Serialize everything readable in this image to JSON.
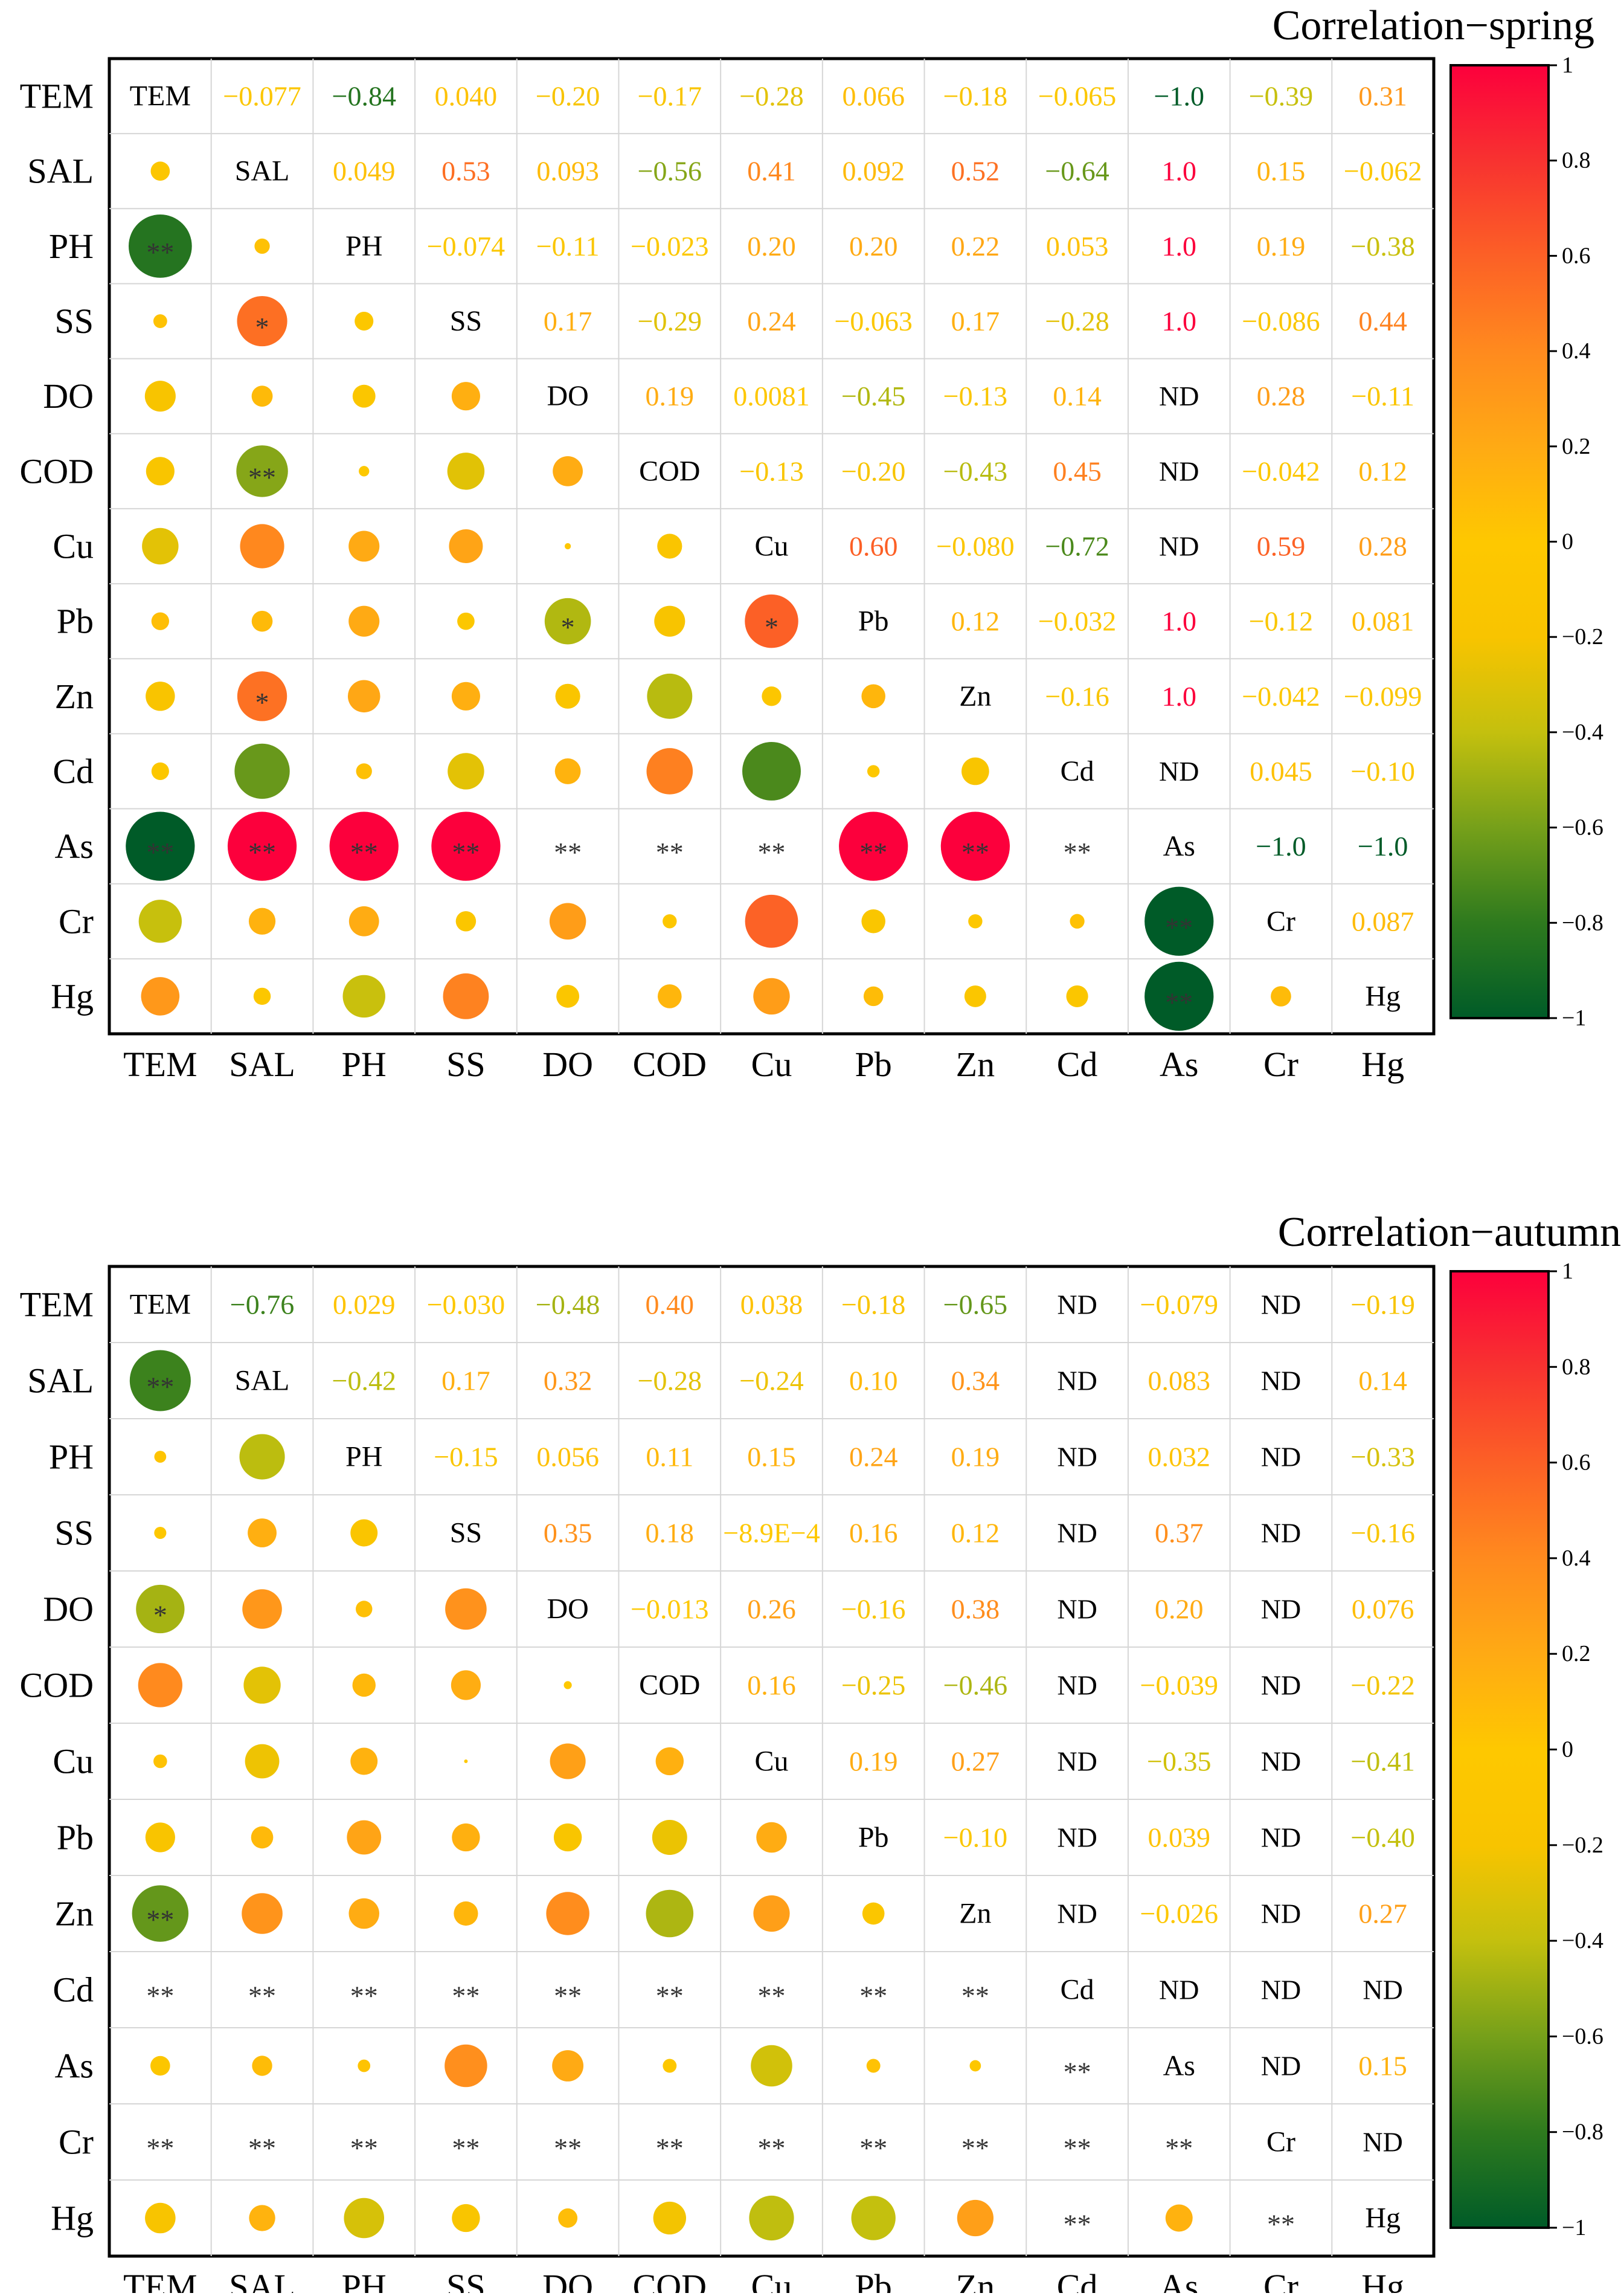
{
  "chart_data": [
    {
      "type": "heatmap",
      "subtype": "correlation-matrix",
      "title": "Correlation−spring",
      "variables": [
        "TEM",
        "SAL",
        "PH",
        "SS",
        "DO",
        "COD",
        "Cu",
        "Pb",
        "Zn",
        "Cd",
        "As",
        "Cr",
        "Hg"
      ],
      "upper_labels": [
        [
          "TEM",
          "−0.077",
          "−0.84",
          "0.040",
          "−0.20",
          "−0.17",
          "−0.28",
          "0.066",
          "−0.18",
          "−0.065",
          "−1.0",
          "−0.39",
          "0.31"
        ],
        [
          "",
          "SAL",
          "0.049",
          "0.53",
          "0.093",
          "−0.56",
          "0.41",
          "0.092",
          "0.52",
          "−0.64",
          "1.0",
          "0.15",
          "−0.062"
        ],
        [
          "",
          "",
          "PH",
          "−0.074",
          "−0.11",
          "−0.023",
          "0.20",
          "0.20",
          "0.22",
          "0.053",
          "1.0",
          "0.19",
          "−0.38"
        ],
        [
          "",
          "",
          "",
          "SS",
          "0.17",
          "−0.29",
          "0.24",
          "−0.063",
          "0.17",
          "−0.28",
          "1.0",
          "−0.086",
          "0.44"
        ],
        [
          "",
          "",
          "",
          "",
          "DO",
          "0.19",
          "0.0081",
          "−0.45",
          "−0.13",
          "0.14",
          "ND",
          "0.28",
          "−0.11"
        ],
        [
          "",
          "",
          "",
          "",
          "",
          "COD",
          "−0.13",
          "−0.20",
          "−0.43",
          "0.45",
          "ND",
          "−0.042",
          "0.12"
        ],
        [
          "",
          "",
          "",
          "",
          "",
          "",
          "Cu",
          "0.60",
          "−0.080",
          "−0.72",
          "ND",
          "0.59",
          "0.28"
        ],
        [
          "",
          "",
          "",
          "",
          "",
          "",
          "",
          "Pb",
          "0.12",
          "−0.032",
          "1.0",
          "−0.12",
          "0.081"
        ],
        [
          "",
          "",
          "",
          "",
          "",
          "",
          "",
          "",
          "Zn",
          "−0.16",
          "1.0",
          "−0.042",
          "−0.099"
        ],
        [
          "",
          "",
          "",
          "",
          "",
          "",
          "",
          "",
          "",
          "Cd",
          "ND",
          "0.045",
          "−0.10"
        ],
        [
          "",
          "",
          "",
          "",
          "",
          "",
          "",
          "",
          "",
          "",
          "As",
          "−1.0",
          "−1.0"
        ],
        [
          "",
          "",
          "",
          "",
          "",
          "",
          "",
          "",
          "",
          "",
          "",
          "Cr",
          "0.087"
        ],
        [
          "",
          "",
          "",
          "",
          "",
          "",
          "",
          "",
          "",
          "",
          "",
          "",
          "Hg"
        ]
      ],
      "marks": [
        [
          "",
          "",
          "",
          "",
          "",
          "",
          "",
          "",
          "",
          "",
          "",
          "",
          ""
        ],
        [
          "",
          "",
          "",
          "",
          "",
          "",
          "",
          "",
          "",
          "",
          "",
          "",
          ""
        ],
        [
          "**",
          "",
          "",
          "",
          "",
          "",
          "",
          "",
          "",
          "",
          "",
          "",
          ""
        ],
        [
          "",
          "*",
          "",
          "",
          "",
          "",
          "",
          "",
          "",
          "",
          "",
          "",
          ""
        ],
        [
          "",
          "",
          "",
          "",
          "",
          "",
          "",
          "",
          "",
          "",
          "",
          "",
          ""
        ],
        [
          "",
          "**",
          "",
          "",
          "",
          "",
          "",
          "",
          "",
          "",
          "",
          "",
          ""
        ],
        [
          "",
          "",
          "",
          "",
          "",
          "",
          "",
          "",
          "",
          "",
          "",
          "",
          ""
        ],
        [
          "",
          "",
          "",
          "",
          "*",
          "",
          "*",
          "",
          "",
          "",
          "",
          "",
          ""
        ],
        [
          "",
          "*",
          "",
          "",
          "",
          "",
          "",
          "",
          "",
          "",
          "",
          "",
          ""
        ],
        [
          "",
          "",
          "",
          "",
          "",
          "",
          "",
          "",
          "",
          "",
          "",
          "",
          ""
        ],
        [
          "**",
          "**",
          "**",
          "**",
          "**",
          "**",
          "**",
          "**",
          "**",
          "**",
          "",
          "",
          ""
        ],
        [
          "",
          "",
          "",
          "",
          "",
          "",
          "",
          "",
          "",
          "",
          "**",
          "",
          ""
        ],
        [
          "",
          "",
          "",
          "",
          "",
          "",
          "",
          "",
          "",
          "",
          "**",
          "",
          ""
        ]
      ],
      "colorbar": {
        "min": -1,
        "max": 1,
        "ticks": [
          "1",
          "0.8",
          "0.6",
          "0.4",
          "0.2",
          "0",
          "−0.2",
          "−0.4",
          "−0.6",
          "−0.8",
          "−1"
        ]
      }
    },
    {
      "type": "heatmap",
      "subtype": "correlation-matrix",
      "title": "Correlation−autumn",
      "variables": [
        "TEM",
        "SAL",
        "PH",
        "SS",
        "DO",
        "COD",
        "Cu",
        "Pb",
        "Zn",
        "Cd",
        "As",
        "Cr",
        "Hg"
      ],
      "upper_labels": [
        [
          "TEM",
          "−0.76",
          "0.029",
          "−0.030",
          "−0.48",
          "0.40",
          "0.038",
          "−0.18",
          "−0.65",
          "ND",
          "−0.079",
          "ND",
          "−0.19"
        ],
        [
          "",
          "SAL",
          "−0.42",
          "0.17",
          "0.32",
          "−0.28",
          "−0.24",
          "0.10",
          "0.34",
          "ND",
          "0.083",
          "ND",
          "0.14"
        ],
        [
          "",
          "",
          "PH",
          "−0.15",
          "0.056",
          "0.11",
          "0.15",
          "0.24",
          "0.19",
          "ND",
          "0.032",
          "ND",
          "−0.33"
        ],
        [
          "",
          "",
          "",
          "SS",
          "0.35",
          "0.18",
          "−8.9E−4",
          "0.16",
          "0.12",
          "ND",
          "0.37",
          "ND",
          "−0.16"
        ],
        [
          "",
          "",
          "",
          "",
          "DO",
          "−0.013",
          "0.26",
          "−0.16",
          "0.38",
          "ND",
          "0.20",
          "ND",
          "0.076"
        ],
        [
          "",
          "",
          "",
          "",
          "",
          "COD",
          "0.16",
          "−0.25",
          "−0.46",
          "ND",
          "−0.039",
          "ND",
          "−0.22"
        ],
        [
          "",
          "",
          "",
          "",
          "",
          "",
          "Cu",
          "0.19",
          "0.27",
          "ND",
          "−0.35",
          "ND",
          "−0.41"
        ],
        [
          "",
          "",
          "",
          "",
          "",
          "",
          "",
          "Pb",
          "−0.10",
          "ND",
          "0.039",
          "ND",
          "−0.40"
        ],
        [
          "",
          "",
          "",
          "",
          "",
          "",
          "",
          "",
          "Zn",
          "ND",
          "−0.026",
          "ND",
          "0.27"
        ],
        [
          "",
          "",
          "",
          "",
          "",
          "",
          "",
          "",
          "",
          "Cd",
          "ND",
          "ND",
          "ND"
        ],
        [
          "",
          "",
          "",
          "",
          "",
          "",
          "",
          "",
          "",
          "",
          "As",
          "ND",
          "0.15"
        ],
        [
          "",
          "",
          "",
          "",
          "",
          "",
          "",
          "",
          "",
          "",
          "",
          "Cr",
          "ND"
        ],
        [
          "",
          "",
          "",
          "",
          "",
          "",
          "",
          "",
          "",
          "",
          "",
          "",
          "Hg"
        ]
      ],
      "marks": [
        [
          "",
          "",
          "",
          "",
          "",
          "",
          "",
          "",
          "",
          "",
          "",
          "",
          ""
        ],
        [
          "**",
          "",
          "",
          "",
          "",
          "",
          "",
          "",
          "",
          "",
          "",
          "",
          ""
        ],
        [
          "",
          "",
          "",
          "",
          "",
          "",
          "",
          "",
          "",
          "",
          "",
          "",
          ""
        ],
        [
          "",
          "",
          "",
          "",
          "",
          "",
          "",
          "",
          "",
          "",
          "",
          "",
          ""
        ],
        [
          "*",
          "",
          "",
          "",
          "",
          "",
          "",
          "",
          "",
          "",
          "",
          "",
          ""
        ],
        [
          "",
          "",
          "",
          "",
          "",
          "",
          "",
          "",
          "",
          "",
          "",
          "",
          ""
        ],
        [
          "",
          "",
          "",
          "",
          "",
          "",
          "",
          "",
          "",
          "",
          "",
          "",
          ""
        ],
        [
          "",
          "",
          "",
          "",
          "",
          "",
          "",
          "",
          "",
          "",
          "",
          "",
          ""
        ],
        [
          "**",
          "",
          "",
          "",
          "",
          "",
          "",
          "",
          "",
          "",
          "",
          "",
          ""
        ],
        [
          "**",
          "**",
          "**",
          "**",
          "**",
          "**",
          "**",
          "**",
          "**",
          "",
          "",
          "",
          ""
        ],
        [
          "",
          "",
          "",
          "",
          "",
          "",
          "",
          "",
          "",
          "**",
          "",
          "",
          ""
        ],
        [
          "**",
          "**",
          "**",
          "**",
          "**",
          "**",
          "**",
          "**",
          "**",
          "**",
          "**",
          "",
          ""
        ],
        [
          "",
          "",
          "",
          "",
          "",
          "",
          "",
          "",
          "",
          "**",
          "",
          "**",
          ""
        ]
      ],
      "colorbar": {
        "min": -1,
        "max": 1,
        "ticks": [
          "1",
          "0.8",
          "0.6",
          "0.4",
          "0.2",
          "0",
          "−0.2",
          "−0.4",
          "−0.6",
          "−0.8",
          "−1"
        ]
      }
    }
  ]
}
